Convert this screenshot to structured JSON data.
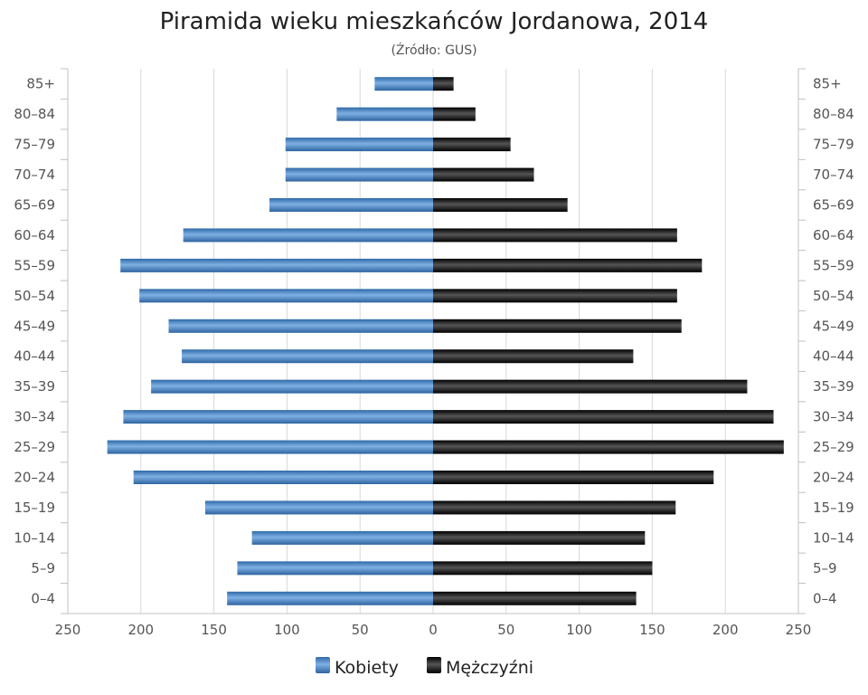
{
  "chart_data": {
    "type": "bar",
    "orientation": "horizontal",
    "title": "Piramida wieku mieszkańców Jordanowa, 2014",
    "subtitle": "(Źródło: GUS)",
    "categories": [
      "85+",
      "80-84",
      "75-79",
      "70-74",
      "65-69",
      "60-64",
      "55-59",
      "50-54",
      "45-49",
      "40-44",
      "35-39",
      "30-34",
      "25-29",
      "20-24",
      "15-19",
      "10-14",
      "5-9",
      "0-4"
    ],
    "series": [
      {
        "name": "Kobiety",
        "side": "left",
        "color": "#4a86c5",
        "values": [
          40,
          66,
          101,
          101,
          112,
          171,
          214,
          201,
          181,
          172,
          193,
          212,
          223,
          205,
          156,
          124,
          134,
          141
        ]
      },
      {
        "name": "Mężczyźni",
        "side": "right",
        "color": "#1a1a1a",
        "values": [
          14,
          29,
          53,
          69,
          92,
          167,
          184,
          167,
          170,
          137,
          215,
          233,
          240,
          192,
          166,
          145,
          150,
          139
        ]
      }
    ],
    "xlim": [
      -250,
      250
    ],
    "xticks": [
      "250",
      "200",
      "150",
      "100",
      "50",
      "0",
      "50",
      "100",
      "150",
      "200",
      "250"
    ],
    "grid": true,
    "legend": "bottom"
  }
}
